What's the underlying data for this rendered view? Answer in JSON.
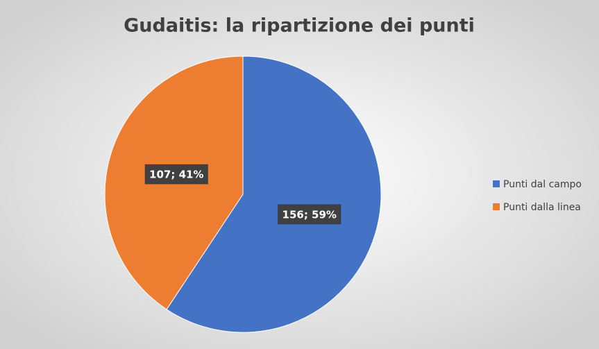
{
  "chart_data": {
    "type": "pie",
    "title": "Gudaitis: la ripartizione dei punti",
    "categories": [
      "Punti dal campo",
      "Punti dalla linea"
    ],
    "values": [
      156,
      107
    ],
    "value_labels": [
      "156; 59%",
      "107; 41%"
    ],
    "colors": [
      "#4472c4",
      "#ed7d31"
    ],
    "legend": "right"
  }
}
